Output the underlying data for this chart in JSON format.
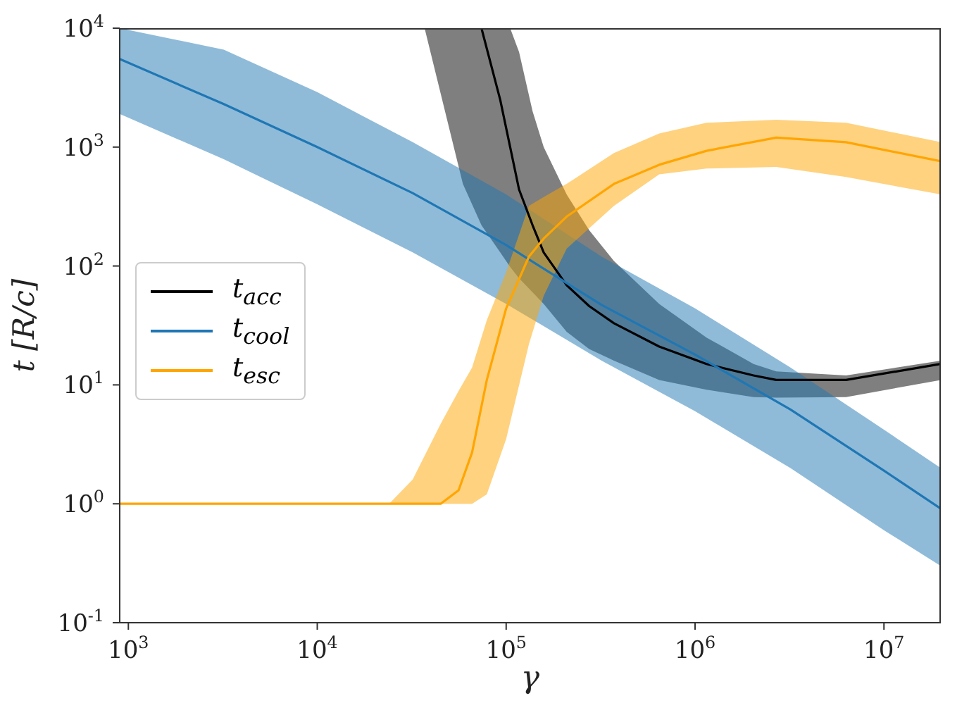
{
  "chart_data": {
    "type": "line",
    "xlabel": "γ",
    "ylabel": "t [R/c]",
    "log": "xy",
    "grid": false,
    "legend": "left",
    "marker": "none",
    "line_style": "solid",
    "xlim": [
      900,
      20000000
    ],
    "ylim": [
      0.1,
      10000
    ],
    "xticks": [
      {
        "value": 1000,
        "label": "10$^{3}$"
      },
      {
        "value": 10000,
        "label": "10$^{4}$"
      },
      {
        "value": 100000,
        "label": "10$^{5}$"
      },
      {
        "value": 1000000,
        "label": "10$^{6}$"
      },
      {
        "value": 10000000,
        "label": "10$^{7}$"
      }
    ],
    "yticks": [
      {
        "value": 0.1,
        "label": "10$^{-1}$"
      },
      {
        "value": 1,
        "label": "10$^{0}$"
      },
      {
        "value": 10,
        "label": "10$^{1}$"
      },
      {
        "value": 100,
        "label": "10$^{2}$"
      },
      {
        "value": 1000,
        "label": "10$^{3}$"
      },
      {
        "value": 10000,
        "label": "10$^{4}$"
      }
    ],
    "series": [
      {
        "name": "t$_{acc}$",
        "color": "#000000",
        "x": [
          37000,
          59000,
          74000,
          93000,
          105000,
          117000,
          138000,
          158000,
          209000,
          275000,
          372000,
          646000,
          1150000,
          2040000,
          2690000,
          6300000,
          20000000
        ],
        "values": [
          null,
          null,
          10000,
          2500,
          1000,
          440,
          220,
          130,
          69,
          46,
          33,
          21,
          15,
          12,
          11,
          11,
          15
        ],
        "upper": [
          10000,
          10000,
          10000,
          10000,
          10000,
          6300,
          2000,
          1000,
          400,
          200,
          110,
          48,
          25,
          15,
          13,
          12,
          16
        ],
        "lower": [
          10000,
          490,
          220,
          130,
          98,
          79,
          60,
          48,
          28,
          20,
          16,
          11,
          9.1,
          7.9,
          7.8,
          7.9,
          11
        ]
      },
      {
        "name": "t$_{cool}$",
        "color": "#1f77b4",
        "x": [
          900,
          3200,
          10000,
          32000,
          100000,
          320000,
          1000000,
          3200000,
          10000000,
          20000000
        ],
        "values": [
          5500,
          2300,
          1000,
          410,
          150,
          47,
          18,
          6.2,
          1.9,
          0.91
        ],
        "upper": [
          10000,
          6600,
          2900,
          1100,
          400,
          120,
          44,
          14,
          4.2,
          2.0
        ],
        "lower": [
          1900,
          790,
          330,
          130,
          48,
          16,
          6.0,
          2.0,
          0.6,
          0.3
        ]
      },
      {
        "name": "t$_{esc}$",
        "color": "#ffa500",
        "x": [
          900,
          10000,
          24000,
          32000,
          45000,
          56000,
          66000,
          79000,
          100000,
          132000,
          158000,
          209000,
          372000,
          646000,
          1150000,
          2690000,
          6300000,
          20000000
        ],
        "values": [
          1,
          1,
          1,
          1,
          1,
          1.3,
          2.7,
          11,
          44,
          120,
          170,
          260,
          490,
          710,
          930,
          1200,
          1100,
          760
        ],
        "upper": [
          1,
          1,
          1,
          1.6,
          4.7,
          8.9,
          14,
          35,
          89,
          320,
          380,
          490,
          890,
          1300,
          1600,
          1700,
          1600,
          1100
        ],
        "lower": [
          1,
          1,
          1,
          1,
          1,
          1,
          1,
          1.2,
          3.5,
          22,
          56,
          140,
          320,
          590,
          660,
          680,
          560,
          400
        ]
      }
    ]
  }
}
